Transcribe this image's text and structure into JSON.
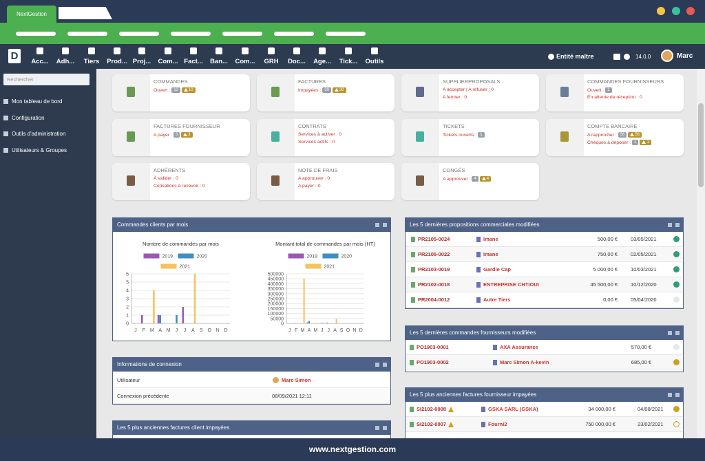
{
  "browser": {
    "tab_title": "NextGestion",
    "footer_url": "www.nextgestion.com"
  },
  "topnav": {
    "logo": "D",
    "menu": [
      "Acc...",
      "Adh...",
      "Tiers",
      "Prod...",
      "Proj...",
      "Com...",
      "Fact...",
      "Ban...",
      "Com...",
      "GRH",
      "Doc...",
      "Age...",
      "Tick...",
      "Outils"
    ],
    "entity": "Entité maître",
    "version": "14.0.0",
    "user": "Marc"
  },
  "sidebar": {
    "search_placeholder": "Rechercher",
    "items": [
      "Mon tableau de bord",
      "Configuration",
      "Outils d'administration",
      "Utilisateurs & Groupes"
    ]
  },
  "cards": [
    {
      "title": "COMMANDES",
      "color": "#6a9a4f",
      "lines": [
        {
          "text": "Ouvert :",
          "badges": [
            {
              "value": 12
            },
            {
              "value": 10,
              "warning": true
            }
          ]
        }
      ]
    },
    {
      "title": "FACTURES",
      "color": "#6a9a4f",
      "lines": [
        {
          "text": "Impayées :",
          "badges": [
            {
              "value": 30
            },
            {
              "value": 30,
              "warning": true
            }
          ]
        }
      ]
    },
    {
      "title": "SUPPLIERPROPOSALS",
      "color": "#5d6b8c",
      "lines": [
        {
          "text": "A accepter | A refuser : 0"
        },
        {
          "text": "A fermer : 0"
        }
      ]
    },
    {
      "title": "COMMANDES FOURNISSEURS",
      "color": "#6c7f99",
      "lines": [
        {
          "text": "Ouvert :",
          "badges": [
            {
              "value": 1
            }
          ]
        },
        {
          "text": "En attente de réception : 0"
        }
      ]
    },
    {
      "title": "FACTURES FOURNISSEUR",
      "color": "#6a9a4f",
      "lines": [
        {
          "text": "A payer :",
          "badges": [
            {
              "value": 3
            },
            {
              "value": 3,
              "warning": true
            }
          ]
        }
      ]
    },
    {
      "title": "CONTRATS",
      "color": "#4aaea0",
      "lines": [
        {
          "text": "Services à activer : 0"
        },
        {
          "text": "Services actifs : 0"
        }
      ]
    },
    {
      "title": "TICKETS",
      "color": "#4aaea0",
      "lines": [
        {
          "text": "Tickets ouverts :",
          "badges": [
            {
              "value": 1
            }
          ]
        }
      ]
    },
    {
      "title": "COMPTE BANCAIRE",
      "color": "#a8983a",
      "lines": [
        {
          "text": "A rapprocher :",
          "badges": [
            {
              "value": 56
            },
            {
              "value": 56,
              "warning": true
            }
          ]
        },
        {
          "text": "Chèques à déposer :",
          "badges": [
            {
              "value": 1
            },
            {
              "value": 1,
              "warning": true
            }
          ]
        }
      ]
    },
    {
      "title": "ADHÉRENTS",
      "color": "#7a5c45",
      "lines": [
        {
          "text": "À valider : 0"
        },
        {
          "text": "Cotisations à recevoir : 0"
        }
      ]
    },
    {
      "title": "NOTE DE FRAIS",
      "color": "#7a5c45",
      "lines": [
        {
          "text": "A approuver : 0"
        },
        {
          "text": "A payer : 0"
        }
      ]
    },
    {
      "title": "CONGÉS",
      "color": "#7a5c45",
      "lines": [
        {
          "text": "A approuver :",
          "badges": [
            {
              "value": 4
            },
            {
              "value": 4,
              "warning": true
            }
          ]
        }
      ]
    }
  ],
  "widgets": {
    "orders_chart": {
      "title": "Commandes clients par mois",
      "charts": [
        {
          "type": "bar",
          "title": "Nombre de commandes par mois",
          "categories": [
            "J",
            "F",
            "M",
            "A",
            "M",
            "J",
            "J",
            "A",
            "S",
            "O",
            "N",
            "D"
          ],
          "series": [
            {
              "name": "2019",
              "color": "#9b59b6",
              "values": [
                0,
                1,
                0,
                1,
                0,
                0,
                2,
                0,
                0,
                0,
                0,
                0
              ]
            },
            {
              "name": "2020",
              "color": "#3f8fbf",
              "values": [
                0,
                0,
                0,
                1,
                0,
                1,
                0,
                0,
                0,
                0,
                0,
                0
              ]
            },
            {
              "name": "2021",
              "color": "#f7c25c",
              "values": [
                0,
                0,
                4,
                0,
                0,
                0,
                0,
                6,
                0,
                0,
                0,
                0
              ]
            }
          ],
          "ylim": [
            0,
            6
          ],
          "yticks": [
            0,
            1,
            2,
            3,
            4,
            5,
            6
          ],
          "grid": true
        },
        {
          "type": "bar",
          "title": "Montant total de commandes par mois (HT)",
          "categories": [
            "J",
            "F",
            "M",
            "A",
            "M",
            "J",
            "J",
            "A",
            "S",
            "O",
            "N",
            "D"
          ],
          "series": [
            {
              "name": "2019",
              "color": "#9b59b6",
              "values": [
                0,
                3000,
                0,
                10000,
                0,
                0,
                8000,
                0,
                0,
                0,
                0,
                0
              ]
            },
            {
              "name": "2020",
              "color": "#3f8fbf",
              "values": [
                0,
                0,
                0,
                25000,
                0,
                6000,
                0,
                0,
                0,
                0,
                0,
                0
              ]
            },
            {
              "name": "2021",
              "color": "#f7c25c",
              "values": [
                0,
                0,
                450000,
                0,
                0,
                0,
                0,
                45000,
                0,
                0,
                0,
                0
              ]
            }
          ],
          "ylim": [
            0,
            500000
          ],
          "yticks": [
            0,
            50000,
            100000,
            150000,
            200000,
            250000,
            300000,
            350000,
            400000,
            450000,
            500000
          ],
          "grid": true
        }
      ]
    },
    "connection": {
      "title": "Informations de connexion",
      "rows": [
        [
          "Utilisateur",
          "Marc Simon"
        ],
        [
          "Connexion précédente",
          "08/09/2021 12:11"
        ]
      ]
    },
    "customer_invoices": {
      "title": "Les 5 plus anciennes factures client impayées"
    },
    "proposals": {
      "title": "Les 5 dernières propositions commerciales modifiées",
      "rows": [
        {
          "ref": "PR2105-0024",
          "thirdparty": "Imane",
          "amount": "500,00 €",
          "date": "03/05/2021",
          "status": "#2e9e7a"
        },
        {
          "ref": "PR2105-0022",
          "thirdparty": "Imane",
          "amount": "750,00 €",
          "date": "02/05/2021",
          "status": "#2e9e7a"
        },
        {
          "ref": "PR2103-0019",
          "thirdparty": "Gardie Cap",
          "amount": "5 000,00 €",
          "date": "10/03/2021",
          "status": "#2e9e7a"
        },
        {
          "ref": "PR2102-0018",
          "thirdparty": "ENTREPRISE CHTIOUI",
          "amount": "45 500,00 €",
          "date": "10/12/2020",
          "status": "#2e9e7a"
        },
        {
          "ref": "PR2004-0012",
          "thirdparty": "Autre Tiers",
          "amount": "0,00 €",
          "date": "05/04/2020",
          "status": "#e4e8ec"
        }
      ]
    },
    "supplier_orders": {
      "title": "Les 5 dernières commandes fournisseurs modifiées",
      "rows": [
        {
          "ref": "PO1903-0001",
          "thirdparty": "AXA Assurance",
          "amount": "570,00 €",
          "status": "#e4e8ec"
        },
        {
          "ref": "PO1903-0002",
          "thirdparty": "Marc Simon A-kevin",
          "amount": "685,00 €",
          "status": "#c9a227"
        }
      ]
    },
    "supplier_invoices": {
      "title": "Les 5 plus anciennes factures fournisseur impayées",
      "rows": [
        {
          "ref": "SI2102-0008",
          "warning": true,
          "thirdparty": "GSKA SARL (GSKA)",
          "amount": "34 000,00 €",
          "date": "04/08/2021",
          "status": "#c9a227"
        },
        {
          "ref": "SI2102-0007",
          "warning": true,
          "thirdparty": "Fourni2",
          "amount": "750 000,00 €",
          "date": "23/02/2021",
          "status": "#c9a227",
          "outline": true
        }
      ]
    }
  }
}
